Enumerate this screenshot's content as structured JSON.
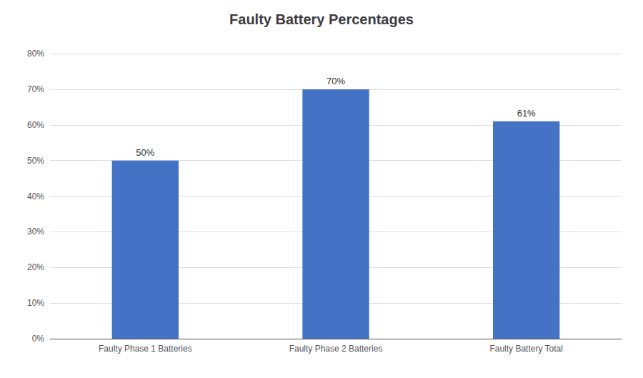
{
  "chart_data": {
    "type": "bar",
    "title": "Faulty Battery Percentages",
    "categories": [
      "Faulty Phase 1 Batteries",
      "Faulty Phase 2 Batteries",
      "Faulty Battery Total"
    ],
    "values": [
      50,
      70,
      61
    ],
    "value_labels": [
      "50%",
      "70%",
      "61%"
    ],
    "data_labels": true,
    "color": "#4472C4",
    "ylim": [
      0,
      80
    ],
    "yticks": [
      {
        "value": 0,
        "label": "0%"
      },
      {
        "value": 10,
        "label": "10%"
      },
      {
        "value": 20,
        "label": "20%"
      },
      {
        "value": 30,
        "label": "30%"
      },
      {
        "value": 40,
        "label": "40%"
      },
      {
        "value": 50,
        "label": "50%"
      },
      {
        "value": 60,
        "label": "60%"
      },
      {
        "value": 70,
        "label": "70%"
      },
      {
        "value": 80,
        "label": "80%"
      }
    ],
    "grid": true
  }
}
